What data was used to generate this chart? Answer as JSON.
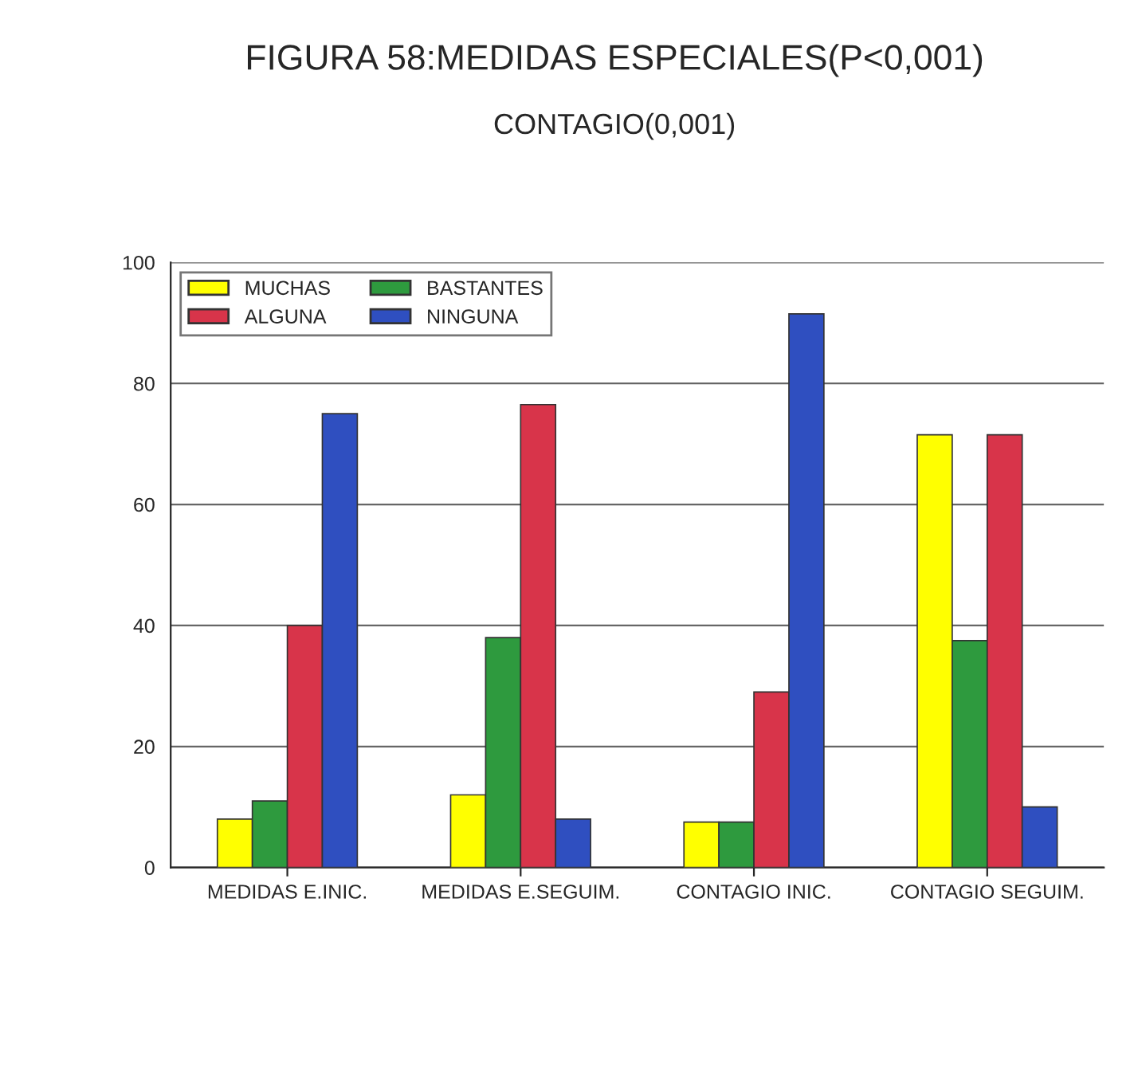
{
  "chart_data": {
    "type": "bar",
    "title": "FIGURA 58:MEDIDAS ESPECIALES(P<0,001)",
    "subtitle": "CONTAGIO(0,001)",
    "categories": [
      "MEDIDAS E.INIC.",
      "MEDIDAS E.SEGUIM.",
      "CONTAGIO INIC.",
      "CONTAGIO SEGUIM."
    ],
    "series": [
      {
        "name": "MUCHAS",
        "color": "#ffff00",
        "values": [
          8,
          12,
          7.5,
          71.5
        ]
      },
      {
        "name": "BASTANTES",
        "color": "#2e9a3e",
        "values": [
          11,
          38,
          7.5,
          37.5
        ]
      },
      {
        "name": "ALGUNA",
        "color": "#d8344a",
        "values": [
          40,
          76.5,
          29,
          71.5
        ]
      },
      {
        "name": "NINGUNA",
        "color": "#2f4fc0",
        "values": [
          75,
          8,
          91.5,
          10
        ]
      }
    ],
    "ylim": [
      0,
      100
    ],
    "yticks": [
      0,
      20,
      40,
      60,
      80,
      100
    ],
    "grid": "y",
    "legend": "top left"
  }
}
